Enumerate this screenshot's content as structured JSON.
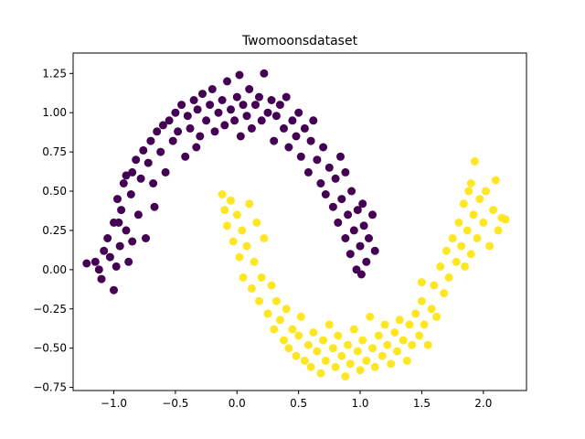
{
  "chart_data": {
    "type": "scatter",
    "title": "Twomoonsdataset",
    "xlabel": "",
    "ylabel": "",
    "xlim": [
      -1.33,
      2.35
    ],
    "ylim": [
      -0.77,
      1.38
    ],
    "grid": false,
    "x_ticks": [
      -1.0,
      -0.5,
      0.0,
      0.5,
      1.0,
      1.5,
      2.0
    ],
    "x_tick_labels": [
      "−1.0",
      "−0.5",
      "0.0",
      "0.5",
      "1.0",
      "1.5",
      "2.0"
    ],
    "y_ticks": [
      -0.75,
      -0.5,
      -0.25,
      0.0,
      0.25,
      0.5,
      0.75,
      1.0,
      1.25
    ],
    "y_tick_labels": [
      "−0.75",
      "−0.50",
      "−0.25",
      "0.00",
      "0.25",
      "0.50",
      "0.75",
      "1.00",
      "1.25"
    ],
    "series": [
      {
        "color": "#440154",
        "points": [
          [
            -1.22,
            0.04
          ],
          [
            -1.15,
            0.05
          ],
          [
            -1.12,
            0.0
          ],
          [
            -1.1,
            -0.06
          ],
          [
            -1.08,
            0.12
          ],
          [
            -1.05,
            0.2
          ],
          [
            -1.03,
            0.08
          ],
          [
            -1.0,
            -0.13
          ],
          [
            -1.0,
            0.3
          ],
          [
            -0.98,
            0.02
          ],
          [
            -0.97,
            0.45
          ],
          [
            -0.95,
            0.15
          ],
          [
            -0.94,
            0.38
          ],
          [
            -0.92,
            0.55
          ],
          [
            -0.9,
            0.25
          ],
          [
            -0.88,
            0.05
          ],
          [
            -0.86,
            0.48
          ],
          [
            -0.85,
            0.62
          ],
          [
            -0.82,
            0.7
          ],
          [
            -0.8,
            0.35
          ],
          [
            -0.78,
            0.58
          ],
          [
            -0.76,
            0.76
          ],
          [
            -0.74,
            0.2
          ],
          [
            -0.72,
            0.68
          ],
          [
            -0.7,
            0.82
          ],
          [
            -0.68,
            0.55
          ],
          [
            -0.65,
            0.88
          ],
          [
            -0.62,
            0.75
          ],
          [
            -0.6,
            0.92
          ],
          [
            -0.58,
            0.62
          ],
          [
            -0.55,
            0.95
          ],
          [
            -0.52,
            0.82
          ],
          [
            -0.5,
            1.0
          ],
          [
            -0.48,
            0.88
          ],
          [
            -0.45,
            1.05
          ],
          [
            -0.42,
            0.72
          ],
          [
            -0.4,
            0.98
          ],
          [
            -0.38,
            0.9
          ],
          [
            -0.35,
            1.08
          ],
          [
            -0.32,
            1.02
          ],
          [
            -0.3,
            0.85
          ],
          [
            -0.28,
            1.12
          ],
          [
            -0.25,
            0.95
          ],
          [
            -0.22,
            1.05
          ],
          [
            -0.2,
            1.15
          ],
          [
            -0.18,
            0.88
          ],
          [
            -0.15,
            1.0
          ],
          [
            -0.12,
            1.08
          ],
          [
            -0.1,
            0.92
          ],
          [
            -0.08,
            1.2
          ],
          [
            -0.05,
            1.02
          ],
          [
            -0.02,
            0.95
          ],
          [
            0.0,
            1.1
          ],
          [
            0.02,
            1.24
          ],
          [
            0.03,
            0.85
          ],
          [
            0.05,
            1.05
          ],
          [
            0.08,
            0.98
          ],
          [
            0.1,
            1.15
          ],
          [
            0.12,
            0.9
          ],
          [
            0.15,
            1.05
          ],
          [
            0.18,
            1.1
          ],
          [
            0.2,
            0.95
          ],
          [
            0.22,
            1.25
          ],
          [
            0.25,
            1.0
          ],
          [
            0.28,
            1.08
          ],
          [
            0.3,
            0.82
          ],
          [
            0.32,
            0.98
          ],
          [
            0.35,
            1.05
          ],
          [
            0.38,
            0.9
          ],
          [
            0.4,
            1.1
          ],
          [
            0.42,
            0.78
          ],
          [
            0.45,
            0.95
          ],
          [
            0.48,
            0.85
          ],
          [
            0.5,
            1.0
          ],
          [
            0.52,
            0.72
          ],
          [
            0.55,
            0.9
          ],
          [
            0.58,
            0.62
          ],
          [
            0.6,
            0.82
          ],
          [
            0.62,
            0.95
          ],
          [
            0.65,
            0.7
          ],
          [
            0.68,
            0.55
          ],
          [
            0.7,
            0.78
          ],
          [
            0.72,
            0.48
          ],
          [
            0.75,
            0.65
          ],
          [
            0.78,
            0.4
          ],
          [
            0.8,
            0.58
          ],
          [
            0.82,
            0.3
          ],
          [
            0.84,
            0.72
          ],
          [
            0.85,
            0.45
          ],
          [
            0.88,
            0.2
          ],
          [
            0.88,
            0.62
          ],
          [
            0.9,
            0.35
          ],
          [
            0.92,
            0.1
          ],
          [
            0.93,
            0.5
          ],
          [
            0.95,
            0.25
          ],
          [
            0.97,
            0.0
          ],
          [
            0.98,
            0.38
          ],
          [
            1.0,
            0.15
          ],
          [
            1.01,
            -0.03
          ],
          [
            1.02,
            0.42
          ],
          [
            1.03,
            0.28
          ],
          [
            1.05,
            0.05
          ],
          [
            1.07,
            0.2
          ],
          [
            1.1,
            0.35
          ],
          [
            1.12,
            0.12
          ],
          [
            -0.9,
            0.6
          ],
          [
            -0.96,
            0.3
          ],
          [
            -0.85,
            0.18
          ],
          [
            -0.67,
            0.4
          ],
          [
            -0.33,
            0.78
          ]
        ]
      },
      {
        "color": "#fde725",
        "points": [
          [
            -0.12,
            0.48
          ],
          [
            -0.1,
            0.38
          ],
          [
            -0.08,
            0.28
          ],
          [
            -0.05,
            0.44
          ],
          [
            -0.03,
            0.18
          ],
          [
            0.0,
            0.35
          ],
          [
            0.02,
            0.08
          ],
          [
            0.04,
            0.25
          ],
          [
            0.05,
            -0.05
          ],
          [
            0.08,
            0.15
          ],
          [
            0.1,
            0.42
          ],
          [
            0.12,
            -0.12
          ],
          [
            0.14,
            0.05
          ],
          [
            0.16,
            0.3
          ],
          [
            0.18,
            -0.2
          ],
          [
            0.2,
            -0.05
          ],
          [
            0.22,
            0.2
          ],
          [
            0.25,
            -0.28
          ],
          [
            0.28,
            -0.1
          ],
          [
            0.3,
            -0.38
          ],
          [
            0.32,
            -0.2
          ],
          [
            0.35,
            -0.32
          ],
          [
            0.38,
            -0.45
          ],
          [
            0.4,
            -0.25
          ],
          [
            0.42,
            -0.5
          ],
          [
            0.45,
            -0.38
          ],
          [
            0.48,
            -0.55
          ],
          [
            0.5,
            -0.42
          ],
          [
            0.52,
            -0.3
          ],
          [
            0.55,
            -0.58
          ],
          [
            0.58,
            -0.48
          ],
          [
            0.6,
            -0.62
          ],
          [
            0.62,
            -0.4
          ],
          [
            0.65,
            -0.52
          ],
          [
            0.68,
            -0.66
          ],
          [
            0.7,
            -0.45
          ],
          [
            0.72,
            -0.58
          ],
          [
            0.75,
            -0.35
          ],
          [
            0.78,
            -0.5
          ],
          [
            0.8,
            -0.62
          ],
          [
            0.82,
            -0.42
          ],
          [
            0.85,
            -0.55
          ],
          [
            0.88,
            -0.68
          ],
          [
            0.9,
            -0.48
          ],
          [
            0.92,
            -0.6
          ],
          [
            0.95,
            -0.38
          ],
          [
            0.98,
            -0.52
          ],
          [
            1.0,
            -0.64
          ],
          [
            1.02,
            -0.45
          ],
          [
            1.05,
            -0.58
          ],
          [
            1.08,
            -0.3
          ],
          [
            1.1,
            -0.5
          ],
          [
            1.12,
            -0.62
          ],
          [
            1.15,
            -0.42
          ],
          [
            1.18,
            -0.55
          ],
          [
            1.2,
            -0.35
          ],
          [
            1.22,
            -0.48
          ],
          [
            1.25,
            -0.6
          ],
          [
            1.28,
            -0.4
          ],
          [
            1.3,
            -0.52
          ],
          [
            1.32,
            -0.32
          ],
          [
            1.35,
            -0.45
          ],
          [
            1.38,
            -0.58
          ],
          [
            1.4,
            -0.35
          ],
          [
            1.42,
            -0.48
          ],
          [
            1.45,
            -0.28
          ],
          [
            1.48,
            -0.42
          ],
          [
            1.5,
            -0.2
          ],
          [
            1.52,
            -0.35
          ],
          [
            1.55,
            -0.48
          ],
          [
            1.58,
            -0.25
          ],
          [
            1.6,
            -0.1
          ],
          [
            1.62,
            -0.3
          ],
          [
            1.65,
            0.02
          ],
          [
            1.68,
            -0.15
          ],
          [
            1.7,
            0.12
          ],
          [
            1.72,
            -0.05
          ],
          [
            1.75,
            0.2
          ],
          [
            1.78,
            0.05
          ],
          [
            1.8,
            0.3
          ],
          [
            1.82,
            0.15
          ],
          [
            1.84,
            0.42
          ],
          [
            1.85,
            0.02
          ],
          [
            1.87,
            0.25
          ],
          [
            1.88,
            0.5
          ],
          [
            1.9,
            0.1
          ],
          [
            1.9,
            0.55
          ],
          [
            1.92,
            0.35
          ],
          [
            1.93,
            0.69
          ],
          [
            1.95,
            0.2
          ],
          [
            1.97,
            0.45
          ],
          [
            2.0,
            0.3
          ],
          [
            2.02,
            0.5
          ],
          [
            2.05,
            0.15
          ],
          [
            2.08,
            0.38
          ],
          [
            2.1,
            0.57
          ],
          [
            2.12,
            0.25
          ],
          [
            2.15,
            0.33
          ],
          [
            2.18,
            0.32
          ],
          [
            1.5,
            -0.08
          ]
        ]
      }
    ]
  }
}
